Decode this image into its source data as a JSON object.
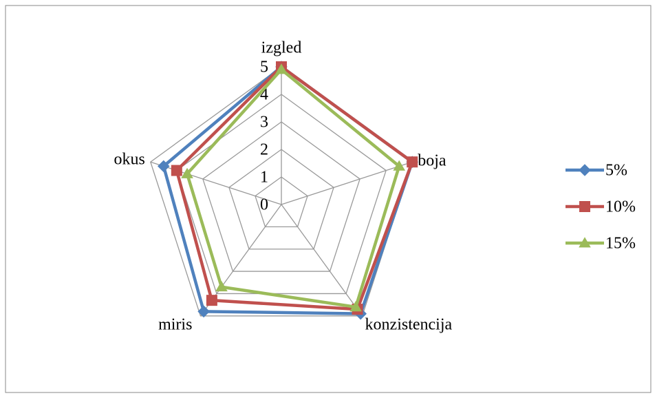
{
  "chart_data": {
    "type": "radar",
    "categories": [
      "izgled",
      "boja",
      "konzistencija",
      "miris",
      "okus"
    ],
    "series": [
      {
        "name": "5%",
        "color": "#4f81bd",
        "marker": "diamond",
        "values": [
          5.0,
          5.0,
          4.9,
          4.8,
          4.5
        ]
      },
      {
        "name": "10%",
        "color": "#c0504d",
        "marker": "square",
        "values": [
          5.0,
          5.0,
          4.7,
          4.3,
          4.0
        ]
      },
      {
        "name": "15%",
        "color": "#9bbb59",
        "marker": "triangle",
        "values": [
          4.9,
          4.5,
          4.6,
          3.7,
          3.6
        ]
      }
    ],
    "rlim": [
      0,
      5
    ],
    "rticks": [
      0,
      1,
      2,
      3,
      4,
      5
    ],
    "grid": true,
    "legend": "right"
  }
}
